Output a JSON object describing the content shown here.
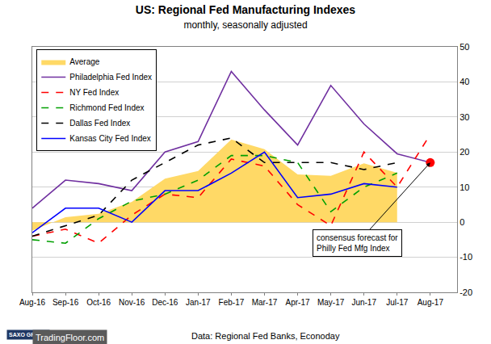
{
  "chart_data": {
    "type": "line",
    "title": "US: Regional Fed Manufacturing Indexes",
    "subtitle": "monthly, seasonally adjusted",
    "categories": [
      "Aug-16",
      "Sep-16",
      "Oct-16",
      "Nov-16",
      "Dec-16",
      "Jan-17",
      "Feb-17",
      "Mar-17",
      "Apr-17",
      "May-17",
      "Jun-17",
      "Jul-17",
      "Aug-17"
    ],
    "series": [
      {
        "name": "Average",
        "type": "area",
        "color": "#ffd966",
        "values": [
          -2.4,
          1.4,
          2.4,
          5.8,
          12.4,
          14.6,
          23.6,
          20.8,
          13.6,
          13.2,
          16.8,
          14.1,
          null
        ]
      },
      {
        "name": "Philadelphia Fed Index",
        "color": "#7030a0",
        "line_style": "solid",
        "values": [
          4,
          12,
          11,
          9,
          20,
          23,
          43,
          32,
          22,
          39,
          28,
          19.5,
          17
        ]
      },
      {
        "name": "NY Fed Index",
        "color": "#ff0000",
        "line_style": "dash",
        "values": [
          -4,
          -2,
          -6,
          2,
          8,
          7,
          18,
          16,
          5,
          -1,
          20,
          10,
          25
        ]
      },
      {
        "name": "Richmond Fed Index",
        "color": "#00a000",
        "line_style": "dash",
        "values": [
          -5,
          -6,
          1,
          6,
          8,
          12,
          19,
          19,
          17,
          3,
          10,
          14,
          null
        ]
      },
      {
        "name": "Dallas Fed Index",
        "color": "#000000",
        "line_style": "dash",
        "values": [
          -4,
          -1,
          2,
          12,
          17,
          22,
          24,
          17,
          17,
          17,
          15,
          17,
          null
        ]
      },
      {
        "name": "Kansas City Fed Index",
        "color": "#0000ff",
        "line_style": "solid",
        "values": [
          -3,
          4,
          4,
          0,
          9,
          9,
          14,
          20,
          7,
          8,
          11,
          10,
          null
        ]
      }
    ],
    "forecast": {
      "category": "Aug-17",
      "value": 17,
      "color": "#ff0000",
      "marker": "circle",
      "label_lines": [
        "consensus forecast for",
        "Philly Fed Mfg Index"
      ]
    },
    "ylim": [
      -20,
      50
    ],
    "yticks": [
      -20,
      -10,
      0,
      10,
      20,
      30,
      40,
      50
    ],
    "grid": true,
    "legend": "top-left",
    "source": "Data: Regional Fed Banks, Econoday",
    "logo_texts": [
      "SAXO GROUP",
      "TradingFloor.com"
    ]
  }
}
